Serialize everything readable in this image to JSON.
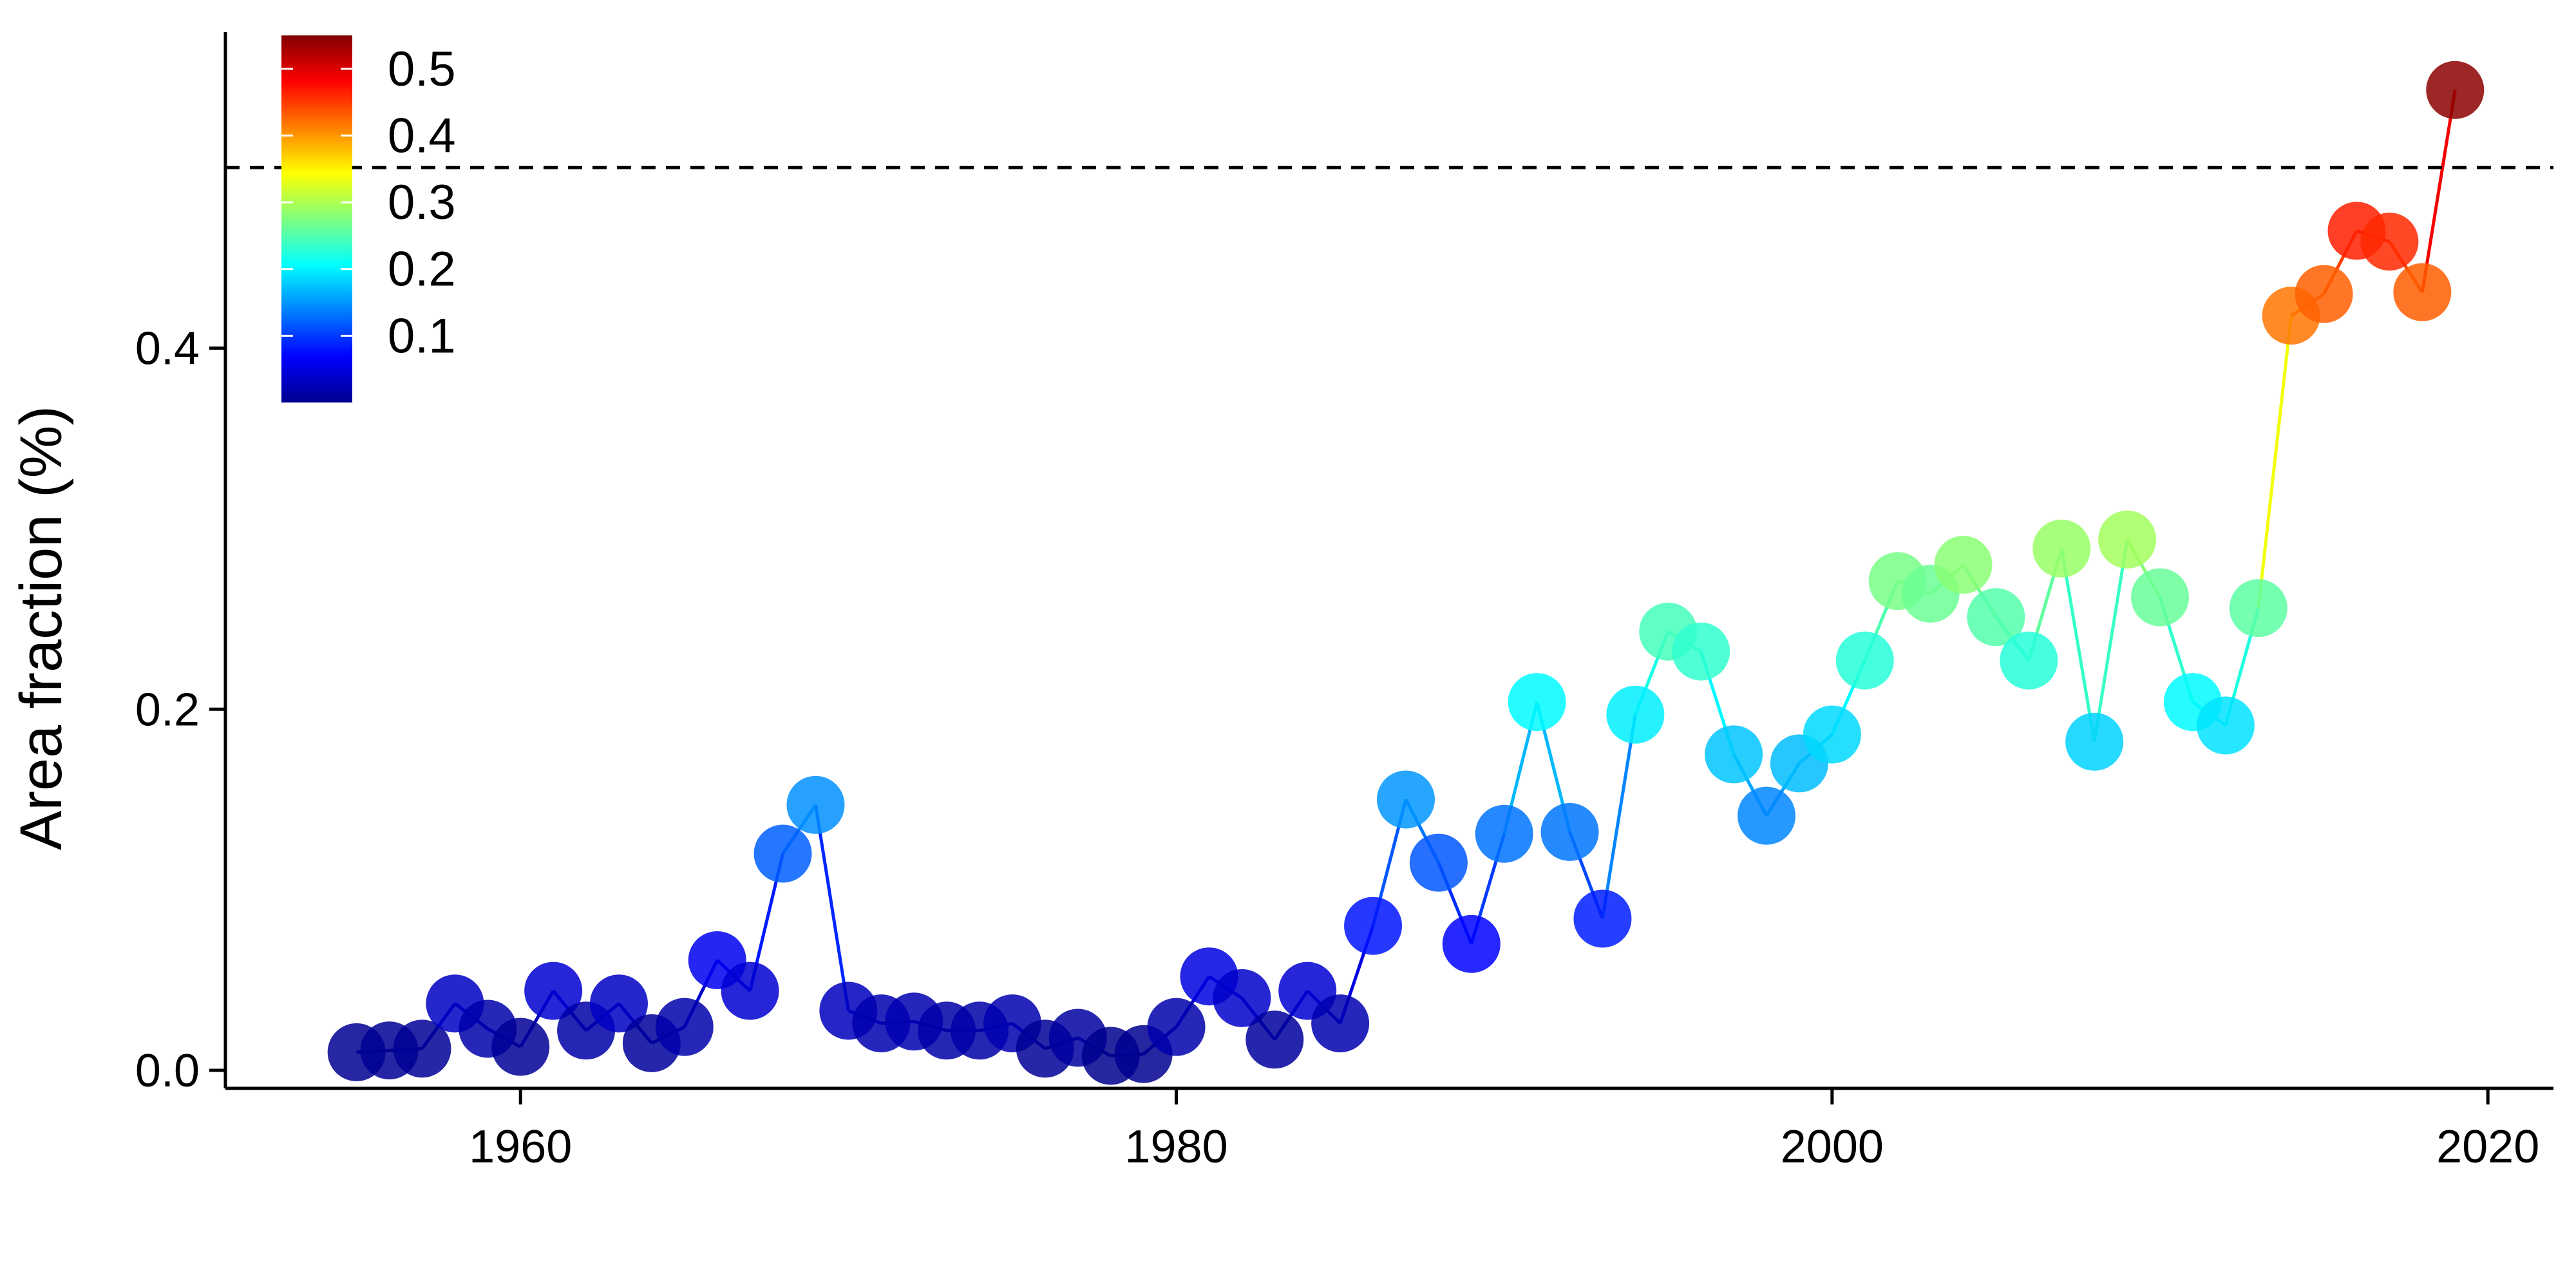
{
  "chart_data": {
    "type": "scatter",
    "title": "",
    "xlabel": "",
    "ylabel": "Area fraction (%)",
    "xlim": [
      1951,
      2022
    ],
    "ylim": [
      -0.01,
      0.575
    ],
    "x_ticks": [
      1960,
      1980,
      2000,
      2020
    ],
    "x_tick_labels": [
      "1960",
      "1980",
      "2000",
      "2020"
    ],
    "y_ticks": [
      0.0,
      0.2,
      0.4
    ],
    "y_tick_labels": [
      "0.0",
      "0.2",
      "0.4"
    ],
    "reference_line": {
      "y": 0.5,
      "style": "dashed"
    },
    "colorbar": {
      "ticks": [
        0.1,
        0.2,
        0.3,
        0.4,
        0.5
      ],
      "tick_labels": [
        "0.1",
        "0.2",
        "0.3",
        "0.4",
        "0.5"
      ],
      "range": [
        0.0,
        0.55
      ],
      "colormap": "jet",
      "placement": "top-left"
    },
    "grid": false,
    "connect_points": true,
    "x": [
      1955,
      1956,
      1957,
      1958,
      1959,
      1960,
      1961,
      1962,
      1963,
      1964,
      1965,
      1966,
      1967,
      1968,
      1969,
      1970,
      1971,
      1972,
      1973,
      1974,
      1975,
      1976,
      1977,
      1978,
      1979,
      1980,
      1981,
      1982,
      1983,
      1984,
      1985,
      1986,
      1987,
      1988,
      1989,
      1990,
      1991,
      1992,
      1993,
      1994,
      1995,
      1996,
      1997,
      1998,
      1999,
      2000,
      2001,
      2002,
      2003,
      2004,
      2005,
      2006,
      2007,
      2008,
      2009,
      2010,
      2011,
      2012,
      2013,
      2014,
      2015,
      2016,
      2017,
      2018,
      2019
    ],
    "y": [
      0.01,
      0.011,
      0.012,
      0.037,
      0.023,
      0.013,
      0.044,
      0.022,
      0.037,
      0.015,
      0.024,
      0.061,
      0.044,
      0.12,
      0.147,
      0.033,
      0.026,
      0.027,
      0.022,
      0.022,
      0.026,
      0.012,
      0.018,
      0.008,
      0.009,
      0.024,
      0.052,
      0.04,
      0.017,
      0.044,
      0.026,
      0.08,
      0.15,
      0.115,
      0.07,
      0.131,
      0.204,
      0.132,
      0.084,
      0.197,
      0.243,
      0.232,
      0.175,
      0.141,
      0.17,
      0.186,
      0.227,
      0.271,
      0.264,
      0.28,
      0.251,
      0.227,
      0.289,
      0.182,
      0.294,
      0.262,
      0.204,
      0.191,
      0.256,
      0.418,
      0.43,
      0.465,
      0.459,
      0.431,
      0.543
    ]
  }
}
